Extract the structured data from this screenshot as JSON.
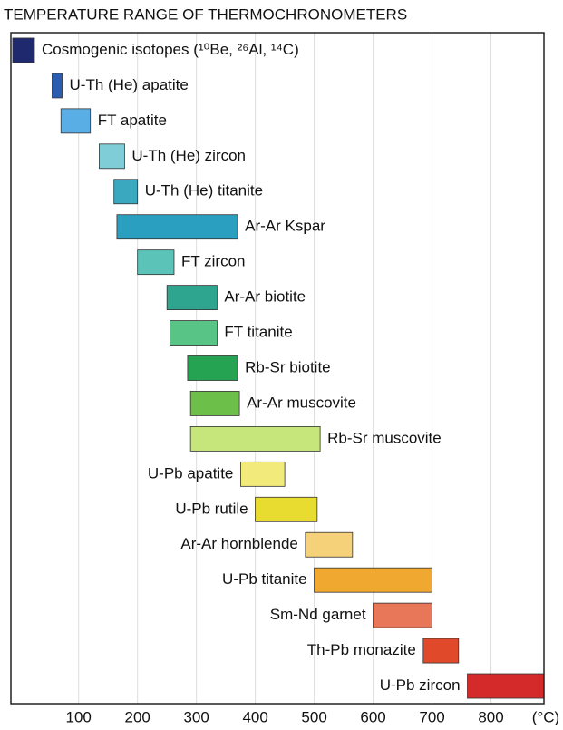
{
  "chart_data": {
    "type": "range_bar",
    "title": "TEMPERATURE RANGE OF THERMOCHRONOMETERS",
    "x_label": "(°C)",
    "categories": [
      "Cosmogenic isotopes (¹⁰Be, ²⁶Al, ¹⁴C)",
      "U-Th (He) apatite",
      "FT apatite",
      "U-Th (He) zircon",
      "U-Th (He) titanite",
      "Ar-Ar Kspar",
      "FT zircon",
      "Ar-Ar biotite",
      "FT titanite",
      "Rb-Sr biotite",
      "Ar-Ar muscovite",
      "Rb-Sr muscovite",
      "U-Pb apatite",
      "U-Pb rutile",
      "Ar-Ar hornblende",
      "U-Pb titanite",
      "Sm-Nd garnet",
      "Th-Pb monazite",
      "U-Pb zircon"
    ],
    "values": [
      [
        -12,
        25
      ],
      [
        55,
        72
      ],
      [
        70,
        120
      ],
      [
        135,
        178
      ],
      [
        160,
        200
      ],
      [
        165,
        370
      ],
      [
        200,
        262
      ],
      [
        250,
        335
      ],
      [
        255,
        335
      ],
      [
        285,
        370
      ],
      [
        290,
        373
      ],
      [
        290,
        510
      ],
      [
        375,
        450
      ],
      [
        400,
        505
      ],
      [
        485,
        565
      ],
      [
        500,
        700
      ],
      [
        600,
        700
      ],
      [
        685,
        745
      ],
      [
        760,
        890
      ]
    ],
    "colors": [
      "#1f2a6e",
      "#2a5db0",
      "#5aaee6",
      "#7fcdd6",
      "#3aa9bf",
      "#2a9fc0",
      "#5cc3b8",
      "#2ea58e",
      "#58c486",
      "#26a352",
      "#6cc04a",
      "#c6e57a",
      "#f2ea7a",
      "#e8dc30",
      "#f5d27a",
      "#f0a830",
      "#e8775a",
      "#e04a2a",
      "#d42a2a"
    ],
    "xlim": [
      -15,
      890
    ],
    "xticks": [
      100,
      200,
      300,
      400,
      500,
      600,
      700,
      800
    ],
    "grid": true
  }
}
